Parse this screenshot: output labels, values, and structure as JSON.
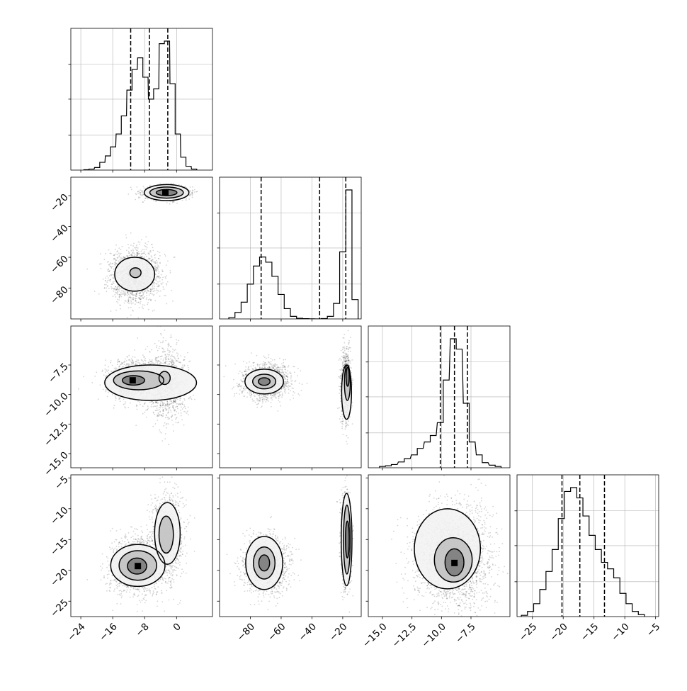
{
  "chart_data": {
    "type": "corner",
    "parameters": [
      {
        "range": [
          -26.5,
          9
        ],
        "ticks": [
          -24,
          -16,
          -8,
          0
        ],
        "tick_labels": [
          "−24",
          "−16",
          "−8",
          "0"
        ],
        "quantiles": [
          -11.5,
          -6.8,
          -2.2
        ],
        "histogram": [
          {
            "x": -22.6,
            "h": 0.003
          },
          {
            "x": -21.3,
            "h": 0.008
          },
          {
            "x": -19.9,
            "h": 0.02
          },
          {
            "x": -18.6,
            "h": 0.06
          },
          {
            "x": -17.2,
            "h": 0.11
          },
          {
            "x": -15.9,
            "h": 0.18
          },
          {
            "x": -14.5,
            "h": 0.28
          },
          {
            "x": -13.2,
            "h": 0.42
          },
          {
            "x": -11.8,
            "h": 0.62
          },
          {
            "x": -10.5,
            "h": 0.78
          },
          {
            "x": -9.1,
            "h": 0.87
          },
          {
            "x": -7.8,
            "h": 0.72
          },
          {
            "x": -6.4,
            "h": 0.55
          },
          {
            "x": -5.1,
            "h": 0.63
          },
          {
            "x": -3.7,
            "h": 0.98
          },
          {
            "x": -2.4,
            "h": 1.0
          },
          {
            "x": -1.0,
            "h": 0.67
          },
          {
            "x": 0.3,
            "h": 0.28
          },
          {
            "x": 1.7,
            "h": 0.1
          },
          {
            "x": 3.0,
            "h": 0.03
          },
          {
            "x": 4.4,
            "h": 0.008
          }
        ]
      },
      {
        "range": [
          -100,
          -8
        ],
        "ticks": [
          -80,
          -60,
          -40,
          -20
        ],
        "tick_labels": [
          "−80",
          "−60",
          "−40",
          "−20"
        ],
        "quantiles": [
          -73,
          -35,
          -18
        ],
        "histogram": [
          {
            "x": -92,
            "h": 0.01
          },
          {
            "x": -88,
            "h": 0.05
          },
          {
            "x": -84,
            "h": 0.13
          },
          {
            "x": -80,
            "h": 0.27
          },
          {
            "x": -76,
            "h": 0.41
          },
          {
            "x": -72,
            "h": 0.48
          },
          {
            "x": -68,
            "h": 0.44
          },
          {
            "x": -64,
            "h": 0.33
          },
          {
            "x": -60,
            "h": 0.19
          },
          {
            "x": -56,
            "h": 0.08
          },
          {
            "x": -52,
            "h": 0.02
          },
          {
            "x": -48,
            "h": 0.005
          },
          {
            "x": -44,
            "h": 0.002
          },
          {
            "x": -40,
            "h": 0.001
          },
          {
            "x": -36,
            "h": 0.0
          },
          {
            "x": -32,
            "h": 0.003
          },
          {
            "x": -28,
            "h": 0.02
          },
          {
            "x": -24,
            "h": 0.12
          },
          {
            "x": -20,
            "h": 0.52
          },
          {
            "x": -16,
            "h": 1.0
          },
          {
            "x": -12,
            "h": 0.15
          }
        ]
      },
      {
        "range": [
          -16.2,
          -4.2
        ],
        "ticks": [
          -15.0,
          -12.5,
          -10.0,
          -7.5
        ],
        "tick_labels": [
          "−15.0",
          "−12.5",
          "−10.0",
          "−7.5"
        ],
        "quantiles": [
          -10.1,
          -8.9,
          -7.8
        ],
        "histogram": [
          {
            "x": -15.0,
            "h": 0.01
          },
          {
            "x": -14.5,
            "h": 0.015
          },
          {
            "x": -14.0,
            "h": 0.025
          },
          {
            "x": -13.4,
            "h": 0.045
          },
          {
            "x": -12.9,
            "h": 0.07
          },
          {
            "x": -12.3,
            "h": 0.1
          },
          {
            "x": -11.8,
            "h": 0.15
          },
          {
            "x": -11.2,
            "h": 0.2
          },
          {
            "x": -10.7,
            "h": 0.25
          },
          {
            "x": -10.1,
            "h": 0.35
          },
          {
            "x": -9.6,
            "h": 0.68
          },
          {
            "x": -9.0,
            "h": 1.0
          },
          {
            "x": -8.5,
            "h": 0.92
          },
          {
            "x": -7.9,
            "h": 0.5
          },
          {
            "x": -7.4,
            "h": 0.2
          },
          {
            "x": -6.8,
            "h": 0.1
          },
          {
            "x": -6.3,
            "h": 0.04
          },
          {
            "x": -5.7,
            "h": 0.02
          },
          {
            "x": -5.2,
            "h": 0.01
          }
        ]
      },
      {
        "range": [
          -27.5,
          -4.5
        ],
        "ticks": [
          -25,
          -20,
          -15,
          -10,
          -5
        ],
        "tick_labels": [
          "−25",
          "−20",
          "−15",
          "−10",
          "−5"
        ],
        "quantiles": [
          -20.2,
          -17.3,
          -13.3
        ],
        "histogram": [
          {
            "x": -26.3,
            "h": 0.01
          },
          {
            "x": -25.3,
            "h": 0.04
          },
          {
            "x": -24.3,
            "h": 0.1
          },
          {
            "x": -23.3,
            "h": 0.21
          },
          {
            "x": -22.3,
            "h": 0.35
          },
          {
            "x": -21.3,
            "h": 0.52
          },
          {
            "x": -20.3,
            "h": 0.76
          },
          {
            "x": -19.3,
            "h": 0.97
          },
          {
            "x": -18.3,
            "h": 1.0
          },
          {
            "x": -17.3,
            "h": 0.92
          },
          {
            "x": -16.3,
            "h": 0.78
          },
          {
            "x": -15.3,
            "h": 0.63
          },
          {
            "x": -14.3,
            "h": 0.52
          },
          {
            "x": -13.3,
            "h": 0.42
          },
          {
            "x": -12.3,
            "h": 0.37
          },
          {
            "x": -11.3,
            "h": 0.3
          },
          {
            "x": -10.3,
            "h": 0.18
          },
          {
            "x": -9.3,
            "h": 0.1
          },
          {
            "x": -8.3,
            "h": 0.04
          },
          {
            "x": -7.3,
            "h": 0.015
          }
        ]
      }
    ],
    "pairs": [
      {
        "row": 1,
        "col": 0,
        "y_ticks": [
          -20,
          -40,
          -60,
          -80
        ],
        "y_tick_labels": [
          "−20",
          "−40",
          "−60",
          "−80"
        ],
        "clusters": [
          {
            "cx": -2.5,
            "cy": -18,
            "sx": 3.0,
            "sy": 2.2,
            "n": 900
          },
          {
            "cx": -10.5,
            "cy": -72,
            "sx": 3.2,
            "sy": 8.5,
            "n": 1600
          }
        ],
        "contours": [
          {
            "cx": -2.5,
            "cy": -18,
            "rx": 5.6,
            "ry": 5.2,
            "level": 1
          },
          {
            "cx": -2.5,
            "cy": -18,
            "rx": 4.2,
            "ry": 3.6,
            "level": 2
          },
          {
            "cx": -2.5,
            "cy": -18,
            "rx": 2.6,
            "ry": 2.0,
            "level": 3
          },
          {
            "cx": -10.5,
            "cy": -71,
            "rx": 5.0,
            "ry": 11.0,
            "level": 1
          },
          {
            "cx": -10.3,
            "cy": -70,
            "rx": 1.4,
            "ry": 3.2,
            "level": 2
          }
        ],
        "peaks": [
          {
            "x": -2.8,
            "y": -18
          }
        ]
      },
      {
        "row": 2,
        "col": 0,
        "y_ticks": [
          -7.5,
          -10.0,
          -12.5,
          -15.0
        ],
        "y_tick_labels": [
          "−7.5",
          "−10.0",
          "−12.5",
          "−15.0"
        ],
        "clusters": [
          {
            "cx": -10.5,
            "cy": -8.8,
            "sx": 3.2,
            "sy": 0.8,
            "n": 1500
          },
          {
            "cx": -2.6,
            "cy": -9.2,
            "sx": 2.6,
            "sy": 1.6,
            "n": 1100
          }
        ],
        "contours": [
          {
            "cx": -6.5,
            "cy": -9.0,
            "rx": 11.5,
            "ry": 1.5,
            "level": 1
          },
          {
            "cx": -9.5,
            "cy": -8.8,
            "rx": 6.3,
            "ry": 0.8,
            "level": 2
          },
          {
            "cx": -10.8,
            "cy": -8.8,
            "rx": 2.8,
            "ry": 0.4,
            "level": 3
          },
          {
            "cx": -3.0,
            "cy": -8.6,
            "rx": 1.4,
            "ry": 0.55,
            "level": 2
          }
        ],
        "peaks": [
          {
            "x": -11.0,
            "y": -8.8
          }
        ]
      },
      {
        "row": 2,
        "col": 1,
        "clusters": [
          {
            "cx": -70,
            "cy": -8.9,
            "sx": 8.0,
            "sy": 0.75,
            "n": 1500
          },
          {
            "cx": -18,
            "cy": -9.3,
            "sx": 1.6,
            "sy": 1.6,
            "n": 900
          }
        ],
        "contours": [
          {
            "cx": -71,
            "cy": -8.9,
            "rx": 12.5,
            "ry": 1.05,
            "level": 1
          },
          {
            "cx": -71,
            "cy": -8.9,
            "rx": 7.5,
            "ry": 0.62,
            "level": 2
          },
          {
            "cx": -71,
            "cy": -8.9,
            "rx": 3.8,
            "ry": 0.32,
            "level": 3
          },
          {
            "cx": -17.5,
            "cy": -9.8,
            "rx": 3.2,
            "ry": 2.3,
            "level": 1
          },
          {
            "cx": -17.0,
            "cy": -9.0,
            "rx": 1.9,
            "ry": 1.5,
            "level": 2
          },
          {
            "cx": -16.8,
            "cy": -8.5,
            "rx": 1.0,
            "ry": 0.8,
            "level": 3
          }
        ],
        "peaks": []
      },
      {
        "row": 3,
        "col": 0,
        "y_ticks": [
          -5,
          -10,
          -15,
          -20,
          -25
        ],
        "y_tick_labels": [
          "−5",
          "−10",
          "−15",
          "−20",
          "−25"
        ],
        "clusters": [
          {
            "cx": -10.0,
            "cy": -19.3,
            "sx": 3.3,
            "sy": 2.3,
            "n": 1500
          },
          {
            "cx": -2.5,
            "cy": -14.5,
            "sx": 2.2,
            "sy": 3.7,
            "n": 1000
          }
        ],
        "contours": [
          {
            "cx": -9.7,
            "cy": -19.2,
            "rx": 6.8,
            "ry": 3.4,
            "level": 1
          },
          {
            "cx": -9.7,
            "cy": -19.2,
            "rx": 4.7,
            "ry": 2.4,
            "level": 2
          },
          {
            "cx": -9.9,
            "cy": -19.3,
            "rx": 2.4,
            "ry": 1.3,
            "level": 3
          },
          {
            "cx": -2.3,
            "cy": -14.0,
            "rx": 3.2,
            "ry": 5.0,
            "level": 1
          },
          {
            "cx": -2.6,
            "cy": -14.2,
            "rx": 1.8,
            "ry": 3.0,
            "level": 2
          }
        ],
        "peaks": [
          {
            "x": -9.7,
            "y": -19.3
          }
        ]
      },
      {
        "row": 3,
        "col": 1,
        "clusters": [
          {
            "cx": -70,
            "cy": -19.0,
            "sx": 7.5,
            "sy": 2.3,
            "n": 1500
          },
          {
            "cx": -18,
            "cy": -15.0,
            "sx": 1.6,
            "sy": 3.7,
            "n": 900
          }
        ],
        "contours": [
          {
            "cx": -71,
            "cy": -18.8,
            "rx": 12.0,
            "ry": 4.3,
            "level": 1
          },
          {
            "cx": -71,
            "cy": -18.8,
            "rx": 7.0,
            "ry": 2.6,
            "level": 2
          },
          {
            "cx": -71,
            "cy": -18.8,
            "rx": 3.5,
            "ry": 1.3,
            "level": 3
          },
          {
            "cx": -17.5,
            "cy": -15.0,
            "rx": 3.5,
            "ry": 7.5,
            "level": 1
          },
          {
            "cx": -17.3,
            "cy": -15.0,
            "rx": 2.2,
            "ry": 5.6,
            "level": 2
          },
          {
            "cx": -17.0,
            "cy": -15.0,
            "rx": 1.2,
            "ry": 3.0,
            "level": 3
          }
        ],
        "peaks": []
      },
      {
        "row": 3,
        "col": 2,
        "clusters": [
          {
            "cx": -9.0,
            "cy": -17.5,
            "sx": 1.6,
            "sy": 4.0,
            "n": 2500
          }
        ],
        "contours": [
          {
            "cx": -9.5,
            "cy": -16.5,
            "rx": 2.8,
            "ry": 6.5,
            "level": 1
          },
          {
            "cx": -9.0,
            "cy": -18.3,
            "rx": 1.6,
            "ry": 3.6,
            "level": 2
          },
          {
            "cx": -8.9,
            "cy": -18.7,
            "rx": 0.8,
            "ry": 2.2,
            "level": 3
          }
        ],
        "peaks": [
          {
            "x": -8.9,
            "y": -18.8
          }
        ]
      }
    ]
  }
}
